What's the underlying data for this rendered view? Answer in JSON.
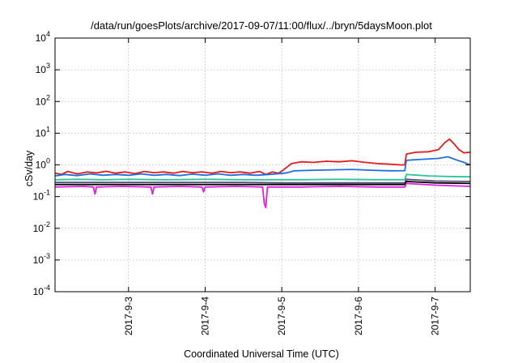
{
  "chart_data": {
    "type": "line",
    "title": "/data/run/goesPlots/archive/2017-09-07/11:00/flux/../bryn/5daysMoon.plot",
    "xlabel": "Coordinated Universal Time (UTC)",
    "ylabel": "cSv/day",
    "yscale": "log",
    "ylim": [
      0.0001,
      10000
    ],
    "xlim": [
      "2017-09-02T01:00",
      "2017-09-07T11:00"
    ],
    "grid": true,
    "legend": "none",
    "y_ticks": [
      {
        "base": "10",
        "exp": "-4",
        "value": 0.0001
      },
      {
        "base": "10",
        "exp": "-3",
        "value": 0.001
      },
      {
        "base": "10",
        "exp": "-2",
        "value": 0.01
      },
      {
        "base": "10",
        "exp": "-1",
        "value": 0.1
      },
      {
        "base": "10",
        "exp": "0",
        "value": 1
      },
      {
        "base": "10",
        "exp": "1",
        "value": 10
      },
      {
        "base": "10",
        "exp": "2",
        "value": 100
      },
      {
        "base": "10",
        "exp": "3",
        "value": 1000
      },
      {
        "base": "10",
        "exp": "4",
        "value": 10000
      }
    ],
    "x_ticks": [
      {
        "label": "2017-9-3",
        "date": "2017-09-03T00:00"
      },
      {
        "label": "2017-9-4",
        "date": "2017-09-04T00:00"
      },
      {
        "label": "2017-9-5",
        "date": "2017-09-05T00:00"
      },
      {
        "label": "2017-9-6",
        "date": "2017-09-06T00:00"
      },
      {
        "label": "2017-9-7",
        "date": "2017-09-07T00:00"
      }
    ],
    "series": [
      {
        "color": "#e8191a",
        "points": [
          [
            "2017-09-02T01:00",
            0.55
          ],
          [
            "2017-09-02T03:00",
            0.5
          ],
          [
            "2017-09-02T05:00",
            0.62
          ],
          [
            "2017-09-02T08:00",
            0.52
          ],
          [
            "2017-09-02T11:00",
            0.6
          ],
          [
            "2017-09-02T14:00",
            0.56
          ],
          [
            "2017-09-02T17:00",
            0.63
          ],
          [
            "2017-09-02T20:00",
            0.55
          ],
          [
            "2017-09-02T23:00",
            0.6
          ],
          [
            "2017-09-03T02:00",
            0.53
          ],
          [
            "2017-09-03T05:00",
            0.62
          ],
          [
            "2017-09-03T08:00",
            0.57
          ],
          [
            "2017-09-03T11:00",
            0.6
          ],
          [
            "2017-09-03T14:00",
            0.55
          ],
          [
            "2017-09-03T17:00",
            0.62
          ],
          [
            "2017-09-03T20:00",
            0.57
          ],
          [
            "2017-09-03T23:00",
            0.6
          ],
          [
            "2017-09-04T02:00",
            0.55
          ],
          [
            "2017-09-04T05:00",
            0.62
          ],
          [
            "2017-09-04T08:00",
            0.57
          ],
          [
            "2017-09-04T11:00",
            0.6
          ],
          [
            "2017-09-04T14:00",
            0.55
          ],
          [
            "2017-09-04T17:00",
            0.62
          ],
          [
            "2017-09-04T19:00",
            0.5
          ],
          [
            "2017-09-04T21:00",
            0.6
          ],
          [
            "2017-09-04T23:00",
            0.55
          ],
          [
            "2017-09-05T00:30",
            0.7
          ],
          [
            "2017-09-05T03:00",
            1.1
          ],
          [
            "2017-09-05T06:00",
            1.25
          ],
          [
            "2017-09-05T10:00",
            1.2
          ],
          [
            "2017-09-05T14:00",
            1.3
          ],
          [
            "2017-09-05T18:00",
            1.25
          ],
          [
            "2017-09-05T22:00",
            1.35
          ],
          [
            "2017-09-06T02:00",
            1.2
          ],
          [
            "2017-09-06T06:00",
            1.1
          ],
          [
            "2017-09-06T10:00",
            1.05
          ],
          [
            "2017-09-06T13:00",
            1.0
          ],
          [
            "2017-09-06T14:30",
            1.0
          ],
          [
            "2017-09-06T15:00",
            2.2
          ],
          [
            "2017-09-06T18:00",
            2.5
          ],
          [
            "2017-09-06T22:00",
            2.6
          ],
          [
            "2017-09-07T01:00",
            3.0
          ],
          [
            "2017-09-07T03:00",
            5.0
          ],
          [
            "2017-09-07T04:30",
            6.5
          ],
          [
            "2017-09-07T06:00",
            4.5
          ],
          [
            "2017-09-07T07:30",
            3.0
          ],
          [
            "2017-09-07T09:00",
            2.4
          ],
          [
            "2017-09-07T11:00",
            2.5
          ]
        ]
      },
      {
        "color": "#1f6fe0",
        "points": [
          [
            "2017-09-02T01:00",
            0.45
          ],
          [
            "2017-09-02T04:00",
            0.5
          ],
          [
            "2017-09-02T08:00",
            0.46
          ],
          [
            "2017-09-02T12:00",
            0.52
          ],
          [
            "2017-09-02T16:00",
            0.47
          ],
          [
            "2017-09-02T20:00",
            0.5
          ],
          [
            "2017-09-03T00:00",
            0.47
          ],
          [
            "2017-09-03T04:00",
            0.52
          ],
          [
            "2017-09-03T08:00",
            0.47
          ],
          [
            "2017-09-03T12:00",
            0.5
          ],
          [
            "2017-09-03T16:00",
            0.46
          ],
          [
            "2017-09-03T20:00",
            0.51
          ],
          [
            "2017-09-04T00:00",
            0.47
          ],
          [
            "2017-09-04T04:00",
            0.52
          ],
          [
            "2017-09-04T08:00",
            0.47
          ],
          [
            "2017-09-04T12:00",
            0.5
          ],
          [
            "2017-09-04T16:00",
            0.47
          ],
          [
            "2017-09-04T20:00",
            0.5
          ],
          [
            "2017-09-05T01:00",
            0.55
          ],
          [
            "2017-09-05T04:00",
            0.65
          ],
          [
            "2017-09-05T10:00",
            0.68
          ],
          [
            "2017-09-05T16:00",
            0.7
          ],
          [
            "2017-09-05T22:00",
            0.72
          ],
          [
            "2017-09-06T04:00",
            0.68
          ],
          [
            "2017-09-06T10:00",
            0.65
          ],
          [
            "2017-09-06T14:30",
            0.66
          ],
          [
            "2017-09-06T15:00",
            1.4
          ],
          [
            "2017-09-06T20:00",
            1.5
          ],
          [
            "2017-09-07T01:00",
            1.6
          ],
          [
            "2017-09-07T04:00",
            1.8
          ],
          [
            "2017-09-07T07:00",
            1.4
          ],
          [
            "2017-09-07T09:00",
            1.2
          ],
          [
            "2017-09-07T11:00",
            1.0
          ]
        ]
      },
      {
        "color": "#2fc49a",
        "points": [
          [
            "2017-09-02T01:00",
            0.34
          ],
          [
            "2017-09-02T08:00",
            0.35
          ],
          [
            "2017-09-02T16:00",
            0.34
          ],
          [
            "2017-09-03T00:00",
            0.35
          ],
          [
            "2017-09-03T12:00",
            0.34
          ],
          [
            "2017-09-04T00:00",
            0.35
          ],
          [
            "2017-09-04T12:00",
            0.34
          ],
          [
            "2017-09-04T22:00",
            0.34
          ],
          [
            "2017-09-05T06:00",
            0.34
          ],
          [
            "2017-09-05T18:00",
            0.35
          ],
          [
            "2017-09-06T06:00",
            0.34
          ],
          [
            "2017-09-06T14:30",
            0.34
          ],
          [
            "2017-09-06T15:00",
            0.5
          ],
          [
            "2017-09-06T22:00",
            0.45
          ],
          [
            "2017-09-07T04:00",
            0.43
          ],
          [
            "2017-09-07T11:00",
            0.42
          ]
        ]
      },
      {
        "color": "#5a4a7a",
        "points": [
          [
            "2017-09-02T01:00",
            0.28
          ],
          [
            "2017-09-02T12:00",
            0.28
          ],
          [
            "2017-09-03T00:00",
            0.28
          ],
          [
            "2017-09-03T12:00",
            0.28
          ],
          [
            "2017-09-04T00:00",
            0.28
          ],
          [
            "2017-09-04T12:00",
            0.28
          ],
          [
            "2017-09-05T00:00",
            0.27
          ],
          [
            "2017-09-05T12:00",
            0.27
          ],
          [
            "2017-09-06T00:00",
            0.27
          ],
          [
            "2017-09-06T14:30",
            0.27
          ],
          [
            "2017-09-06T15:00",
            0.35
          ],
          [
            "2017-09-07T00:00",
            0.31
          ],
          [
            "2017-09-07T11:00",
            0.3
          ]
        ]
      },
      {
        "color": "#000000",
        "points": [
          [
            "2017-09-02T01:00",
            0.24
          ],
          [
            "2017-09-02T12:00",
            0.24
          ],
          [
            "2017-09-03T00:00",
            0.24
          ],
          [
            "2017-09-03T12:00",
            0.24
          ],
          [
            "2017-09-04T00:00",
            0.24
          ],
          [
            "2017-09-04T12:00",
            0.24
          ],
          [
            "2017-09-05T00:00",
            0.24
          ],
          [
            "2017-09-05T12:00",
            0.24
          ],
          [
            "2017-09-06T00:00",
            0.24
          ],
          [
            "2017-09-06T14:30",
            0.24
          ],
          [
            "2017-09-06T15:00",
            0.3
          ],
          [
            "2017-09-07T00:00",
            0.27
          ],
          [
            "2017-09-07T11:00",
            0.26
          ]
        ]
      },
      {
        "color": "#e020e0",
        "points": [
          [
            "2017-09-02T01:00",
            0.2
          ],
          [
            "2017-09-02T10:00",
            0.21
          ],
          [
            "2017-09-02T13:00",
            0.2
          ],
          [
            "2017-09-02T13:30",
            0.12
          ],
          [
            "2017-09-02T14:00",
            0.2
          ],
          [
            "2017-09-02T22:00",
            0.21
          ],
          [
            "2017-09-03T07:00",
            0.2
          ],
          [
            "2017-09-03T07:30",
            0.12
          ],
          [
            "2017-09-03T08:00",
            0.2
          ],
          [
            "2017-09-03T16:00",
            0.21
          ],
          [
            "2017-09-03T23:00",
            0.2
          ],
          [
            "2017-09-03T23:30",
            0.14
          ],
          [
            "2017-09-04T00:00",
            0.2
          ],
          [
            "2017-09-04T10:00",
            0.21
          ],
          [
            "2017-09-04T18:00",
            0.2
          ],
          [
            "2017-09-04T18:30",
            0.06
          ],
          [
            "2017-09-04T19:00",
            0.045
          ],
          [
            "2017-09-04T19:30",
            0.2
          ],
          [
            "2017-09-05T06:00",
            0.2
          ],
          [
            "2017-09-05T18:00",
            0.21
          ],
          [
            "2017-09-06T06:00",
            0.2
          ],
          [
            "2017-09-06T14:30",
            0.2
          ],
          [
            "2017-09-06T15:00",
            0.26
          ],
          [
            "2017-09-07T00:00",
            0.23
          ],
          [
            "2017-09-07T11:00",
            0.21
          ]
        ]
      }
    ]
  }
}
